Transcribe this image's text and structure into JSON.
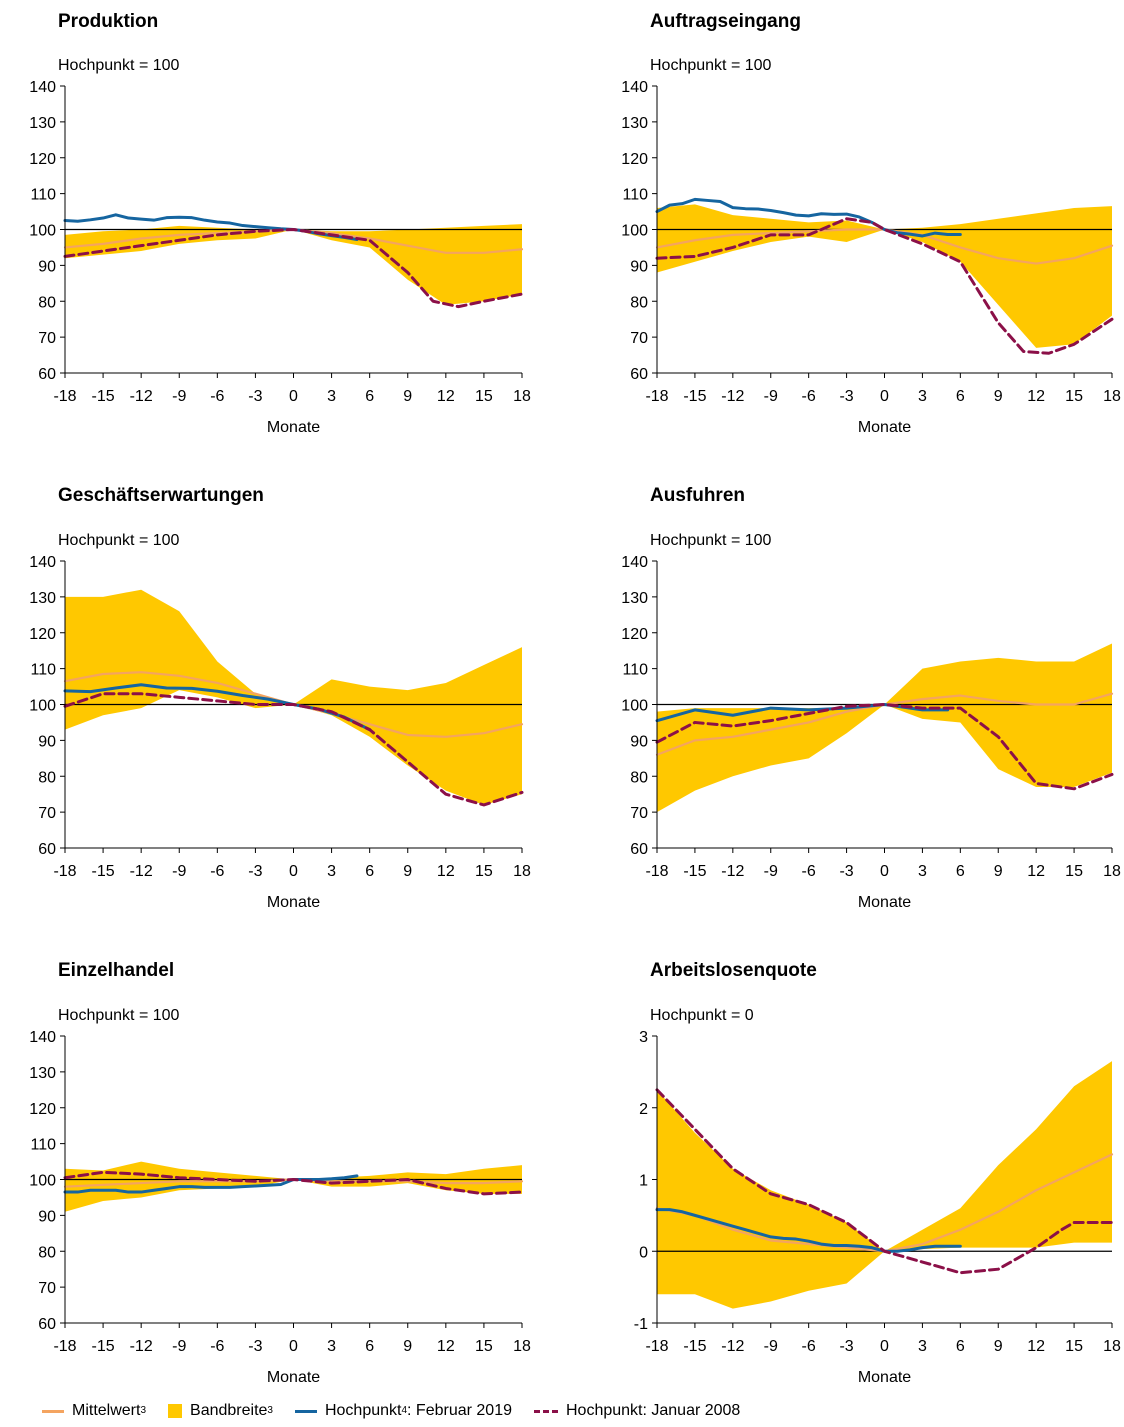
{
  "colors": {
    "mean": "#f4a460",
    "band": "#ffc800",
    "feb2019": "#1565a0",
    "jan2008": "#8b1048"
  },
  "legend": {
    "mean": "Mittelwert",
    "mean_sup": "3",
    "band": "Bandbreite",
    "band_sup": "3",
    "feb2019_a": "Hochpunkt",
    "feb2019_sup": "4",
    "feb2019_b": ": Februar 2019",
    "jan2008": "Hochpunkt: Januar 2008"
  },
  "chart_data": [
    {
      "type": "area",
      "title": "Produktion",
      "subtitle": "Hochpunkt = 100",
      "xlabel": "Monate",
      "xlim": [
        -18,
        18
      ],
      "xticks": [
        -18,
        -15,
        -12,
        -9,
        -6,
        -3,
        0,
        3,
        6,
        9,
        12,
        15,
        18
      ],
      "ylim": [
        60,
        140
      ],
      "yticks": [
        60,
        70,
        80,
        90,
        100,
        110,
        120,
        130,
        140
      ],
      "ref": 100,
      "band": {
        "x": [
          -18,
          -15,
          -12,
          -9,
          -6,
          -3,
          0,
          3,
          6,
          9,
          12,
          15,
          18
        ],
        "upper": [
          98.5,
          99.5,
          100,
          101,
          100.5,
          100,
          100,
          99.5,
          99.5,
          100,
          100.5,
          101,
          101.5
        ],
        "lower": [
          92,
          93,
          94,
          96,
          97,
          97.5,
          100,
          97,
          95,
          86,
          79,
          80,
          82
        ]
      },
      "series": [
        {
          "key": "mean",
          "x": [
            -18,
            -15,
            -12,
            -9,
            -6,
            -3,
            0,
            3,
            6,
            9,
            12,
            15,
            18
          ],
          "values": [
            95,
            96,
            97.5,
            98.5,
            99,
            99.5,
            100,
            99,
            97.5,
            95.5,
            93.5,
            93.5,
            94.5
          ]
        },
        {
          "key": "feb2019",
          "x": [
            -18,
            -17,
            -16,
            -15,
            -14,
            -13,
            -12,
            -11,
            -10,
            -9,
            -8,
            -7,
            -6,
            -5,
            -4,
            -3,
            -2,
            -1,
            0,
            1,
            2,
            3,
            4,
            5
          ],
          "values": [
            102.5,
            102.3,
            102.7,
            103.2,
            104.1,
            103.2,
            102.9,
            102.6,
            103.3,
            103.4,
            103.3,
            102.6,
            102.1,
            101.8,
            101.1,
            100.8,
            100.5,
            100.2,
            100,
            99.5,
            98.8,
            98.3,
            97.8,
            97.2
          ]
        },
        {
          "key": "jan2008",
          "x": [
            -18,
            -15,
            -12,
            -9,
            -6,
            -3,
            0,
            3,
            6,
            9,
            11,
            13,
            15,
            18
          ],
          "values": [
            92.5,
            94,
            95.5,
            97,
            98.5,
            99.5,
            100,
            98.5,
            97,
            88,
            80,
            78.5,
            80,
            82
          ]
        }
      ]
    },
    {
      "type": "area",
      "title": "Auftragseingang",
      "subtitle": "Hochpunkt = 100",
      "xlabel": "Monate",
      "xlim": [
        -18,
        18
      ],
      "xticks": [
        -18,
        -15,
        -12,
        -9,
        -6,
        -3,
        0,
        3,
        6,
        9,
        12,
        15,
        18
      ],
      "ylim": [
        60,
        140
      ],
      "yticks": [
        60,
        70,
        80,
        90,
        100,
        110,
        120,
        130,
        140
      ],
      "ref": 100,
      "band": {
        "x": [
          -18,
          -15,
          -12,
          -9,
          -6,
          -3,
          0,
          3,
          6,
          9,
          12,
          15,
          18
        ],
        "upper": [
          106,
          107,
          104,
          103,
          102,
          102.5,
          100,
          100.5,
          101.5,
          103,
          104.5,
          106,
          106.5
        ],
        "lower": [
          88,
          91,
          94,
          96.5,
          98,
          96.5,
          100,
          96.5,
          91,
          79,
          67,
          68,
          76
        ]
      },
      "series": [
        {
          "key": "mean",
          "x": [
            -18,
            -15,
            -12,
            -9,
            -6,
            -3,
            0,
            3,
            6,
            9,
            12,
            15,
            18
          ],
          "values": [
            95,
            97,
            98.5,
            99,
            99.5,
            100,
            100,
            98.5,
            95,
            92,
            90.5,
            92,
            95.5
          ]
        },
        {
          "key": "feb2019",
          "x": [
            -18,
            -17,
            -16,
            -15,
            -14,
            -13,
            -12,
            -11,
            -10,
            -9,
            -8,
            -7,
            -6,
            -5,
            -4,
            -3,
            -2,
            -1,
            0,
            1,
            2,
            3,
            4,
            5,
            6
          ],
          "values": [
            105,
            106.8,
            107.2,
            108.4,
            108.1,
            107.8,
            106.1,
            105.8,
            105.7,
            105.3,
            104.7,
            104,
            103.8,
            104.4,
            104.2,
            104.3,
            103.5,
            102,
            100,
            99.1,
            98.7,
            98.2,
            99,
            98.6,
            98.6
          ]
        },
        {
          "key": "jan2008",
          "x": [
            -18,
            -15,
            -12,
            -9,
            -6,
            -3,
            -1,
            0,
            3,
            6,
            9,
            11,
            13,
            15,
            18
          ],
          "values": [
            92,
            92.5,
            95,
            98.5,
            98.5,
            103,
            102,
            100,
            96,
            91,
            74,
            66,
            65.5,
            68,
            75
          ]
        }
      ]
    },
    {
      "type": "area",
      "title": "Geschäftserwartungen",
      "subtitle": "Hochpunkt = 100",
      "xlabel": "Monate",
      "xlim": [
        -18,
        18
      ],
      "xticks": [
        -18,
        -15,
        -12,
        -9,
        -6,
        -3,
        0,
        3,
        6,
        9,
        12,
        15,
        18
      ],
      "ylim": [
        60,
        140
      ],
      "yticks": [
        60,
        70,
        80,
        90,
        100,
        110,
        120,
        130,
        140
      ],
      "ref": 100,
      "band": {
        "x": [
          -18,
          -15,
          -12,
          -9,
          -6,
          -3,
          0,
          3,
          6,
          9,
          12,
          15,
          18
        ],
        "upper": [
          130,
          130,
          132,
          126,
          112,
          103,
          100,
          107,
          105,
          104,
          106,
          111,
          116
        ],
        "lower": [
          93,
          97,
          99,
          104,
          102,
          99,
          100,
          97,
          91,
          83,
          76,
          72,
          75
        ]
      },
      "series": [
        {
          "key": "mean",
          "x": [
            -18,
            -15,
            -12,
            -9,
            -6,
            -3,
            0,
            3,
            6,
            9,
            12,
            15,
            18
          ],
          "values": [
            106.5,
            108.5,
            109,
            108,
            106,
            103,
            100,
            97.5,
            94.5,
            91.5,
            91,
            92,
            94.5
          ]
        },
        {
          "key": "feb2019",
          "x": [
            -18,
            -16,
            -14,
            -12,
            -10,
            -8,
            -6,
            -4,
            -2,
            0,
            2,
            4,
            6
          ],
          "values": [
            103.8,
            103.6,
            104.6,
            105.5,
            104.6,
            104.5,
            103.7,
            102.5,
            101.5,
            100,
            98.7,
            96.5,
            93
          ]
        },
        {
          "key": "jan2008",
          "x": [
            -18,
            -15,
            -12,
            -9,
            -6,
            -3,
            0,
            3,
            6,
            9,
            12,
            15,
            18
          ],
          "values": [
            99.5,
            103,
            103,
            102,
            101,
            100,
            100,
            98,
            93,
            84,
            75,
            72,
            75.5
          ]
        }
      ]
    },
    {
      "type": "area",
      "title": "Ausfuhren",
      "subtitle": "Hochpunkt = 100",
      "xlabel": "Monate",
      "xlim": [
        -18,
        18
      ],
      "xticks": [
        -18,
        -15,
        -12,
        -9,
        -6,
        -3,
        0,
        3,
        6,
        9,
        12,
        15,
        18
      ],
      "ylim": [
        60,
        140
      ],
      "yticks": [
        60,
        70,
        80,
        90,
        100,
        110,
        120,
        130,
        140
      ],
      "ref": 100,
      "band": {
        "x": [
          -18,
          -15,
          -12,
          -9,
          -6,
          -3,
          0,
          3,
          6,
          9,
          12,
          15,
          18
        ],
        "upper": [
          98,
          99,
          99,
          99,
          99,
          99,
          100,
          110,
          112,
          113,
          112,
          112,
          117
        ],
        "lower": [
          70,
          76,
          80,
          83,
          85,
          92,
          100,
          96,
          95,
          82,
          77,
          77,
          81
        ]
      },
      "series": [
        {
          "key": "mean",
          "x": [
            -18,
            -15,
            -12,
            -9,
            -6,
            -3,
            0,
            3,
            6,
            9,
            12,
            15,
            18
          ],
          "values": [
            86,
            90,
            91,
            93,
            95,
            98,
            100,
            101.5,
            102.5,
            101,
            100,
            100,
            103
          ]
        },
        {
          "key": "feb2019",
          "x": [
            -18,
            -15,
            -12,
            -9,
            -6,
            -3,
            0,
            3,
            5
          ],
          "values": [
            95.5,
            98.5,
            97,
            99,
            98.5,
            99,
            100,
            98.5,
            98.5
          ]
        },
        {
          "key": "jan2008",
          "x": [
            -18,
            -15,
            -12,
            -9,
            -6,
            -3,
            0,
            3,
            6,
            9,
            12,
            15,
            18
          ],
          "values": [
            89.5,
            95,
            94,
            95.5,
            97.5,
            99.5,
            100,
            99,
            99,
            91,
            78,
            76.5,
            80.5
          ]
        }
      ]
    },
    {
      "type": "area",
      "title": "Einzelhandel",
      "subtitle": "Hochpunkt = 100",
      "xlabel": "Monate",
      "xlim": [
        -18,
        18
      ],
      "xticks": [
        -18,
        -15,
        -12,
        -9,
        -6,
        -3,
        0,
        3,
        6,
        9,
        12,
        15,
        18
      ],
      "ylim": [
        60,
        140
      ],
      "yticks": [
        60,
        70,
        80,
        90,
        100,
        110,
        120,
        130,
        140
      ],
      "ref": 100,
      "band": {
        "x": [
          -18,
          -15,
          -12,
          -9,
          -6,
          -3,
          0,
          3,
          6,
          9,
          12,
          15,
          18
        ],
        "upper": [
          103,
          102.5,
          105,
          103,
          102,
          101,
          100,
          100.5,
          101,
          102,
          101.5,
          103,
          104
        ],
        "lower": [
          91,
          94,
          95,
          97,
          97.5,
          98,
          100,
          98,
          98,
          99,
          97,
          96,
          96
        ]
      },
      "series": [
        {
          "key": "mean",
          "x": [
            -18,
            -15,
            -12,
            -9,
            -6,
            -3,
            0,
            3,
            6,
            9,
            12,
            15,
            18
          ],
          "values": [
            98,
            98.5,
            99,
            99.5,
            99.5,
            99.5,
            100,
            99.5,
            99.5,
            99.5,
            99,
            99,
            99.5
          ]
        },
        {
          "key": "feb2019",
          "x": [
            -18,
            -17,
            -16,
            -15,
            -14,
            -13,
            -12,
            -11,
            -10,
            -9,
            -8,
            -7,
            -6,
            -5,
            -4,
            -3,
            -2,
            -1,
            0,
            1,
            2,
            3,
            4,
            5
          ],
          "values": [
            96.5,
            96.5,
            97,
            97,
            97,
            96.5,
            96.5,
            97,
            97.5,
            98,
            98,
            97.8,
            97.8,
            97.8,
            98,
            98.2,
            98.4,
            98.6,
            100,
            100,
            100,
            100.2,
            100.5,
            101
          ]
        },
        {
          "key": "jan2008",
          "x": [
            -18,
            -15,
            -12,
            -9,
            -6,
            -3,
            0,
            3,
            6,
            9,
            12,
            15,
            18
          ],
          "values": [
            100.5,
            102,
            101.5,
            100.5,
            100,
            99.5,
            100,
            99,
            99.5,
            100,
            97.5,
            96,
            96.5
          ]
        }
      ]
    },
    {
      "type": "area",
      "title": "Arbeitslosenquote",
      "subtitle": "Hochpunkt = 0",
      "xlabel": "Monate",
      "xlim": [
        -18,
        18
      ],
      "xticks": [
        -18,
        -15,
        -12,
        -9,
        -6,
        -3,
        0,
        3,
        6,
        9,
        12,
        15,
        18
      ],
      "ylim": [
        -1,
        3
      ],
      "yticks": [
        -1,
        0,
        1,
        2,
        3
      ],
      "ref": 0,
      "band": {
        "x": [
          -18,
          -15,
          -12,
          -9,
          -6,
          -3,
          0,
          3,
          6,
          9,
          12,
          15,
          18
        ],
        "upper": [
          2.25,
          1.65,
          1.15,
          0.85,
          0.65,
          0.4,
          0,
          0.3,
          0.6,
          1.2,
          1.7,
          2.3,
          2.65
        ],
        "lower": [
          -0.6,
          -0.6,
          -0.8,
          -0.7,
          -0.55,
          -0.45,
          0,
          0.03,
          0.05,
          0.05,
          0.05,
          0.12,
          0.12
        ]
      },
      "series": [
        {
          "key": "mean",
          "x": [
            -18,
            -15,
            -12,
            -9,
            -6,
            -3,
            0,
            3,
            6,
            9,
            12,
            15,
            18
          ],
          "values": [
            0.6,
            0.5,
            0.3,
            0.15,
            0.1,
            0.05,
            0,
            0.1,
            0.3,
            0.55,
            0.85,
            1.1,
            1.35
          ]
        },
        {
          "key": "feb2019",
          "x": [
            -18,
            -17,
            -16,
            -15,
            -14,
            -13,
            -12,
            -11,
            -10,
            -9,
            -8,
            -7,
            -6,
            -5,
            -4,
            -3,
            -2,
            -1,
            0,
            1,
            2,
            3,
            4,
            5,
            6
          ],
          "values": [
            0.58,
            0.58,
            0.55,
            0.5,
            0.45,
            0.4,
            0.35,
            0.3,
            0.25,
            0.2,
            0.18,
            0.17,
            0.14,
            0.1,
            0.08,
            0.08,
            0.07,
            0.05,
            0,
            0,
            0.02,
            0.05,
            0.07,
            0.07,
            0.07
          ]
        },
        {
          "key": "jan2008",
          "x": [
            -18,
            -15,
            -12,
            -9,
            -6,
            -3,
            0,
            3,
            6,
            9,
            12,
            14,
            15,
            18
          ],
          "values": [
            2.25,
            1.7,
            1.15,
            0.8,
            0.65,
            0.4,
            0,
            -0.15,
            -0.3,
            -0.25,
            0.05,
            0.3,
            0.4,
            0.4
          ]
        }
      ]
    }
  ]
}
